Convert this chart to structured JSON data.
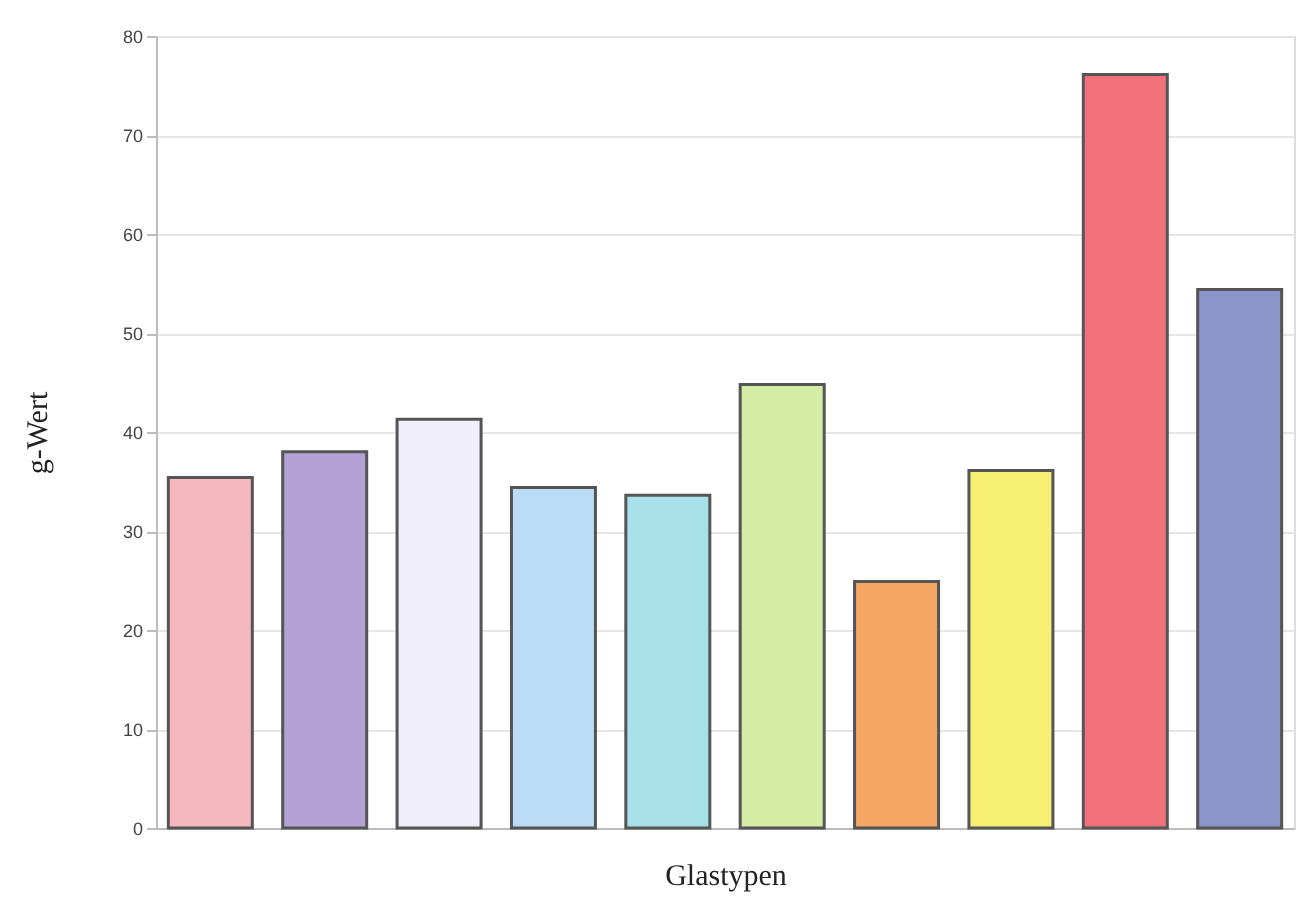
{
  "chart_data": {
    "type": "bar",
    "xlabel": "Glastypen",
    "ylabel": "g-Wert",
    "categories": [
      null,
      null,
      null,
      null,
      null,
      null,
      null,
      null,
      null,
      null
    ],
    "values": [
      35.4,
      38.0,
      41.3,
      34.4,
      33.6,
      44.8,
      24.9,
      36.1,
      76.1,
      54.4
    ],
    "colors": [
      "#f4b8bd",
      "#b3a1d6",
      "#f0eef8",
      "#bcdcf5",
      "#a8e0ea",
      "#d4eca4",
      "#f6a766",
      "#f7ef74",
      "#f0717a",
      "#8c95c9"
    ],
    "ylim": [
      0,
      80
    ],
    "yticks": [
      0,
      10,
      20,
      30,
      40,
      50,
      60,
      70,
      80
    ],
    "grid": "y"
  }
}
